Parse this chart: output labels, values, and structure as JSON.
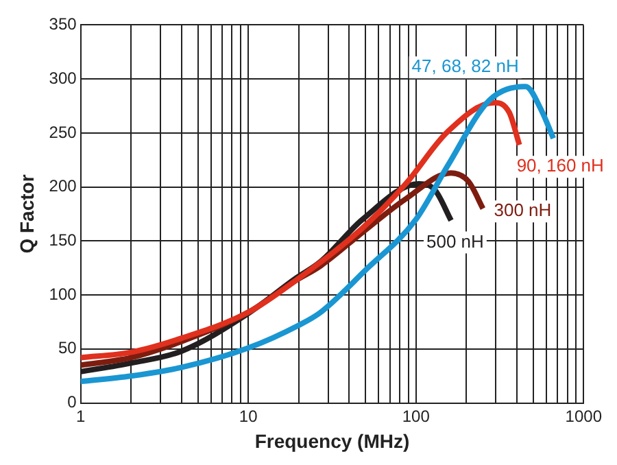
{
  "chart_data": {
    "type": "line",
    "xlabel": "Frequency (MHz)",
    "ylabel": "Q Factor",
    "xlim": [
      1,
      1000
    ],
    "ylim": [
      0,
      350
    ],
    "xticks": [
      1,
      {
        "value": 2,
        "label": null
      },
      {
        "value": 3,
        "label": null
      },
      {
        "value": 4,
        "label": null
      },
      {
        "value": 5,
        "label": null
      },
      {
        "value": 6,
        "label": null
      },
      {
        "value": 7,
        "label": null
      },
      {
        "value": 8,
        "label": null
      },
      {
        "value": 9,
        "label": null
      },
      10,
      {
        "value": 20,
        "label": null
      },
      {
        "value": 30,
        "label": null
      },
      {
        "value": 40,
        "label": null
      },
      {
        "value": 50,
        "label": null
      },
      {
        "value": 60,
        "label": null
      },
      {
        "value": 70,
        "label": null
      },
      {
        "value": 80,
        "label": null
      },
      {
        "value": 90,
        "label": null
      },
      100,
      {
        "value": 200,
        "label": null
      },
      {
        "value": 300,
        "label": null
      },
      {
        "value": 400,
        "label": null
      },
      {
        "value": 500,
        "label": null
      },
      {
        "value": 600,
        "label": null
      },
      {
        "value": 700,
        "label": null
      },
      {
        "value": 800,
        "label": null
      },
      {
        "value": 900,
        "label": null
      },
      1000
    ],
    "yticks": [
      0,
      50,
      100,
      150,
      200,
      250,
      300,
      350
    ],
    "log": "x",
    "grid": true,
    "legend": false,
    "marker": "none",
    "line_style": "solid",
    "series": [
      {
        "name": "47, 68, 82 nH",
        "color": "#1a96d2",
        "x": [
          1,
          2,
          4,
          10,
          20,
          27,
          50,
          100,
          155,
          273,
          451,
          560,
          660
        ],
        "values": [
          20,
          25,
          33,
          51,
          72,
          84,
          123,
          170,
          220,
          280,
          293,
          271,
          245
        ]
      },
      {
        "name": "90, 160 nH",
        "color": "#e0301e",
        "x": [
          1,
          2,
          4,
          10,
          19,
          48,
          87,
          154,
          292,
          360,
          414
        ],
        "values": [
          42,
          47,
          60,
          84,
          113,
          162,
          203,
          251,
          278,
          269,
          239
        ]
      },
      {
        "name": "300 nH",
        "color": "#7d1d10",
        "x": [
          1,
          2,
          4,
          10,
          19,
          27,
          48,
          87,
          162,
          206,
          251
        ],
        "values": [
          35,
          42,
          57,
          84,
          113,
          127,
          158,
          189,
          213,
          205,
          180
        ]
      },
      {
        "name": "500 nH",
        "color": "#231f20",
        "x": [
          1,
          2,
          4,
          10,
          19,
          27,
          48,
          104,
          130,
          162
        ],
        "values": [
          29,
          37,
          48,
          83,
          115,
          131,
          170,
          203,
          197,
          169
        ]
      }
    ]
  }
}
